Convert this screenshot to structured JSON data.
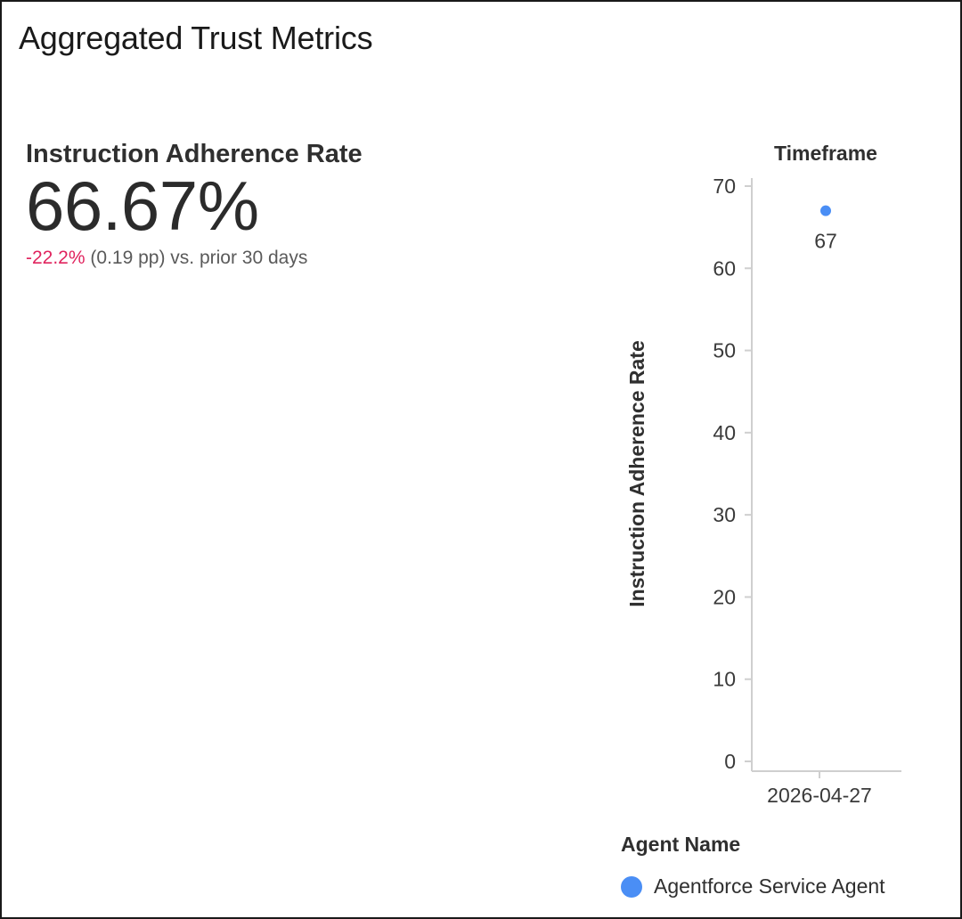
{
  "page": {
    "title": "Aggregated Trust Metrics"
  },
  "kpi": {
    "title": "Instruction Adherence Rate",
    "value": "66.67%",
    "delta": "-22.2%",
    "comparison": "(0.19 pp) vs. prior 30 days",
    "delta_color": "#e0245e"
  },
  "chart_data": {
    "type": "scatter",
    "title": "Timeframe",
    "xlabel": "",
    "ylabel": "Instruction Adherence Rate",
    "categories": [
      "2026-04-27"
    ],
    "ylim": [
      0,
      70
    ],
    "yticks": [
      0,
      10,
      20,
      30,
      40,
      50,
      60,
      70
    ],
    "grid": false,
    "legend": {
      "title": "Agent Name",
      "placement": "bottom"
    },
    "series": [
      {
        "name": "Agentforce Service Agent",
        "color": "#4a8ef5",
        "values": [
          67
        ],
        "labels": [
          "67"
        ]
      }
    ]
  }
}
